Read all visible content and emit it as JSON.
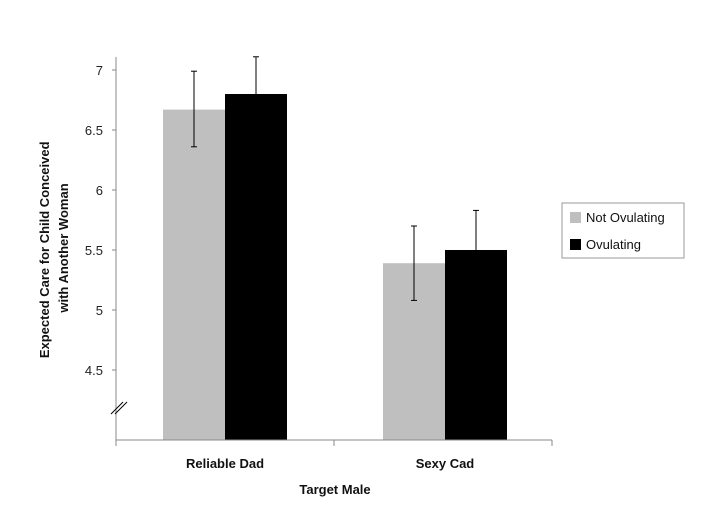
{
  "chart_data": {
    "type": "bar",
    "categories": [
      "Reliable Dad",
      "Sexy Cad"
    ],
    "series": [
      {
        "name": "Not Ovulating",
        "color": "#bfbfbf",
        "values": [
          6.67,
          5.39
        ],
        "error_low": [
          6.36,
          5.08
        ],
        "error_high": [
          6.99,
          5.7
        ]
      },
      {
        "name": "Ovulating",
        "color": "#000000",
        "values": [
          6.8,
          5.5
        ],
        "error_low": [
          6.49,
          5.19
        ],
        "error_high": [
          7.11,
          5.83
        ]
      }
    ],
    "yticks": [
      "4.5",
      "5",
      "5.5",
      "6",
      "6.5",
      "7"
    ],
    "ylim": [
      4.5,
      7
    ],
    "axis_break": true,
    "xlabel": "Target Male",
    "ylabel_lines": [
      "Expected Care for Child Conceived",
      "with Another Woman"
    ],
    "legend_position": "right",
    "grid": false
  }
}
